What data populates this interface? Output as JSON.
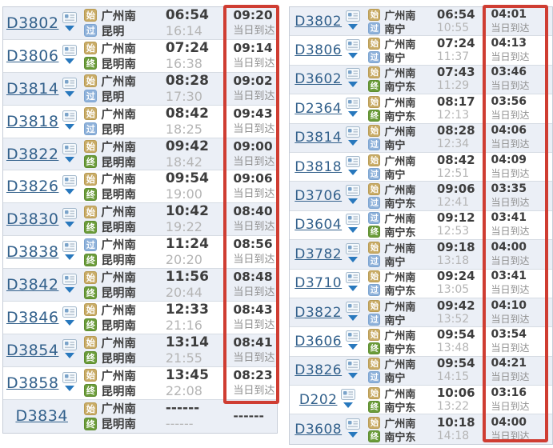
{
  "colors": {
    "highlight_box_red": "#cf3d32",
    "train_link_blue": "#33618c",
    "badge_start_tan": "#c9ac67",
    "badge_pass_blue": "#8fb2da",
    "badge_end_green": "#6b9c3a",
    "time_dark": "#3d3d3d",
    "time_light_gray": "#b5b5b5",
    "note_gray": "#8f8f8f",
    "row_alt_bg": "#ebeff6",
    "row_border": "#d6dbe3"
  },
  "badges": {
    "start": "始",
    "pass": "过",
    "end": "终"
  },
  "icons": {
    "card": "seat-info-card-icon",
    "arrow": "expand-arrow-icon"
  },
  "left_table": {
    "rows": [
      {
        "train": "D3802",
        "has_icons": true,
        "from": {
          "badge": "start",
          "name": "广州南"
        },
        "to": {
          "badge": "pass",
          "name": "昆明"
        },
        "depart": "06:54",
        "arrive": "16:14",
        "duration": "09:20",
        "note": "当日到达"
      },
      {
        "train": "D3806",
        "has_icons": true,
        "from": {
          "badge": "start",
          "name": "广州南"
        },
        "to": {
          "badge": "end",
          "name": "昆明南"
        },
        "depart": "07:24",
        "arrive": "16:38",
        "duration": "09:14",
        "note": "当日到达"
      },
      {
        "train": "D3814",
        "has_icons": true,
        "from": {
          "badge": "start",
          "name": "广州南"
        },
        "to": {
          "badge": "pass",
          "name": "昆明"
        },
        "depart": "08:28",
        "arrive": "17:30",
        "duration": "09:02",
        "note": "当日到达"
      },
      {
        "train": "D3818",
        "has_icons": true,
        "from": {
          "badge": "start",
          "name": "广州南"
        },
        "to": {
          "badge": "pass",
          "name": "昆明"
        },
        "depart": "08:42",
        "arrive": "18:25",
        "duration": "09:43",
        "note": "当日到达"
      },
      {
        "train": "D3822",
        "has_icons": true,
        "from": {
          "badge": "start",
          "name": "广州南"
        },
        "to": {
          "badge": "end",
          "name": "昆明南"
        },
        "depart": "09:42",
        "arrive": "18:42",
        "duration": "09:00",
        "note": "当日到达"
      },
      {
        "train": "D3826",
        "has_icons": true,
        "from": {
          "badge": "start",
          "name": "广州南"
        },
        "to": {
          "badge": "end",
          "name": "昆明南"
        },
        "depart": "09:54",
        "arrive": "19:00",
        "duration": "09:06",
        "note": "当日到达"
      },
      {
        "train": "D3830",
        "has_icons": true,
        "from": {
          "badge": "start",
          "name": "广州南"
        },
        "to": {
          "badge": "end",
          "name": "昆明南"
        },
        "depart": "10:42",
        "arrive": "19:22",
        "duration": "08:40",
        "note": "当日到达"
      },
      {
        "train": "D3838",
        "has_icons": true,
        "from": {
          "badge": "pass",
          "name": "广州南"
        },
        "to": {
          "badge": "end",
          "name": "昆明南"
        },
        "depart": "11:24",
        "arrive": "20:20",
        "duration": "08:56",
        "note": "当日到达"
      },
      {
        "train": "D3842",
        "has_icons": true,
        "from": {
          "badge": "start",
          "name": "广州南"
        },
        "to": {
          "badge": "end",
          "name": "昆明南"
        },
        "depart": "11:56",
        "arrive": "20:44",
        "duration": "08:48",
        "note": "当日到达"
      },
      {
        "train": "D3846",
        "has_icons": true,
        "from": {
          "badge": "start",
          "name": "广州南"
        },
        "to": {
          "badge": "end",
          "name": "昆明南"
        },
        "depart": "12:33",
        "arrive": "21:16",
        "duration": "08:43",
        "note": "当日到达"
      },
      {
        "train": "D3854",
        "has_icons": true,
        "from": {
          "badge": "start",
          "name": "广州南"
        },
        "to": {
          "badge": "end",
          "name": "昆明南"
        },
        "depart": "13:14",
        "arrive": "21:55",
        "duration": "08:41",
        "note": "当日到达"
      },
      {
        "train": "D3858",
        "has_icons": true,
        "from": {
          "badge": "start",
          "name": "广州南"
        },
        "to": {
          "badge": "end",
          "name": "昆明南"
        },
        "depart": "13:45",
        "arrive": "22:08",
        "duration": "08:23",
        "note": "当日到达"
      },
      {
        "train": "D3834",
        "has_icons": false,
        "from": {
          "badge": "start",
          "name": "广州南"
        },
        "to": {
          "badge": "end",
          "name": "昆明南"
        },
        "depart": "------",
        "arrive": "------",
        "duration": "------",
        "note": ""
      }
    ]
  },
  "right_table": {
    "rows": [
      {
        "train": "D3802",
        "has_icons": true,
        "from": {
          "badge": "start",
          "name": "广州南"
        },
        "to": {
          "badge": "pass",
          "name": "南宁"
        },
        "depart": "06:54",
        "arrive": "10:55",
        "duration": "04:01",
        "note": "当日到达"
      },
      {
        "train": "D3806",
        "has_icons": true,
        "from": {
          "badge": "start",
          "name": "广州南"
        },
        "to": {
          "badge": "pass",
          "name": "南宁"
        },
        "depart": "07:24",
        "arrive": "11:37",
        "duration": "04:13",
        "note": "当日到达"
      },
      {
        "train": "D3602",
        "has_icons": true,
        "from": {
          "badge": "start",
          "name": "广州南"
        },
        "to": {
          "badge": "end",
          "name": "南宁东"
        },
        "depart": "07:43",
        "arrive": "11:29",
        "duration": "03:46",
        "note": "当日到达"
      },
      {
        "train": "D2364",
        "has_icons": true,
        "from": {
          "badge": "start",
          "name": "广州南"
        },
        "to": {
          "badge": "end",
          "name": "南宁东"
        },
        "depart": "08:17",
        "arrive": "12:13",
        "duration": "03:56",
        "note": "当日到达"
      },
      {
        "train": "D3814",
        "has_icons": true,
        "from": {
          "badge": "start",
          "name": "广州南"
        },
        "to": {
          "badge": "pass",
          "name": "南宁"
        },
        "depart": "08:28",
        "arrive": "12:34",
        "duration": "04:06",
        "note": "当日到达"
      },
      {
        "train": "D3818",
        "has_icons": true,
        "from": {
          "badge": "start",
          "name": "广州南"
        },
        "to": {
          "badge": "pass",
          "name": "南宁"
        },
        "depart": "08:42",
        "arrive": "12:51",
        "duration": "04:09",
        "note": "当日到达"
      },
      {
        "train": "D3706",
        "has_icons": true,
        "from": {
          "badge": "start",
          "name": "广州南"
        },
        "to": {
          "badge": "pass",
          "name": "南宁东"
        },
        "depart": "09:06",
        "arrive": "12:41",
        "duration": "03:35",
        "note": "当日到达"
      },
      {
        "train": "D3604",
        "has_icons": true,
        "from": {
          "badge": "pass",
          "name": "广州南"
        },
        "to": {
          "badge": "end",
          "name": "南宁东"
        },
        "depart": "09:12",
        "arrive": "12:53",
        "duration": "03:41",
        "note": "当日到达"
      },
      {
        "train": "D3782",
        "has_icons": true,
        "from": {
          "badge": "start",
          "name": "广州南"
        },
        "to": {
          "badge": "pass",
          "name": "南宁"
        },
        "depart": "09:18",
        "arrive": "13:18",
        "duration": "04:00",
        "note": "当日到达"
      },
      {
        "train": "D3710",
        "has_icons": true,
        "from": {
          "badge": "start",
          "name": "广州南"
        },
        "to": {
          "badge": "pass",
          "name": "南宁东"
        },
        "depart": "09:24",
        "arrive": "13:05",
        "duration": "03:41",
        "note": "当日到达"
      },
      {
        "train": "D3822",
        "has_icons": true,
        "from": {
          "badge": "start",
          "name": "广州南"
        },
        "to": {
          "badge": "pass",
          "name": "南宁"
        },
        "depart": "09:42",
        "arrive": "13:52",
        "duration": "04:10",
        "note": "当日到达"
      },
      {
        "train": "D3606",
        "has_icons": true,
        "from": {
          "badge": "start",
          "name": "广州南"
        },
        "to": {
          "badge": "end",
          "name": "南宁东"
        },
        "depart": "09:54",
        "arrive": "13:48",
        "duration": "03:54",
        "note": "当日到达"
      },
      {
        "train": "D3826",
        "has_icons": true,
        "from": {
          "badge": "start",
          "name": "广州南"
        },
        "to": {
          "badge": "pass",
          "name": "南宁"
        },
        "depart": "09:54",
        "arrive": "14:15",
        "duration": "04:21",
        "note": "当日到达"
      },
      {
        "train": "D202",
        "has_icons": true,
        "from": {
          "badge": "start",
          "name": "广州南"
        },
        "to": {
          "badge": "end",
          "name": "南宁东"
        },
        "depart": "10:06",
        "arrive": "13:22",
        "duration": "03:16",
        "note": "当日到达"
      },
      {
        "train": "D3608",
        "has_icons": true,
        "from": {
          "badge": "start",
          "name": "广州南"
        },
        "to": {
          "badge": "end",
          "name": "南宁东"
        },
        "depart": "10:18",
        "arrive": "14:18",
        "duration": "04:00",
        "note": "当日到达"
      }
    ]
  }
}
